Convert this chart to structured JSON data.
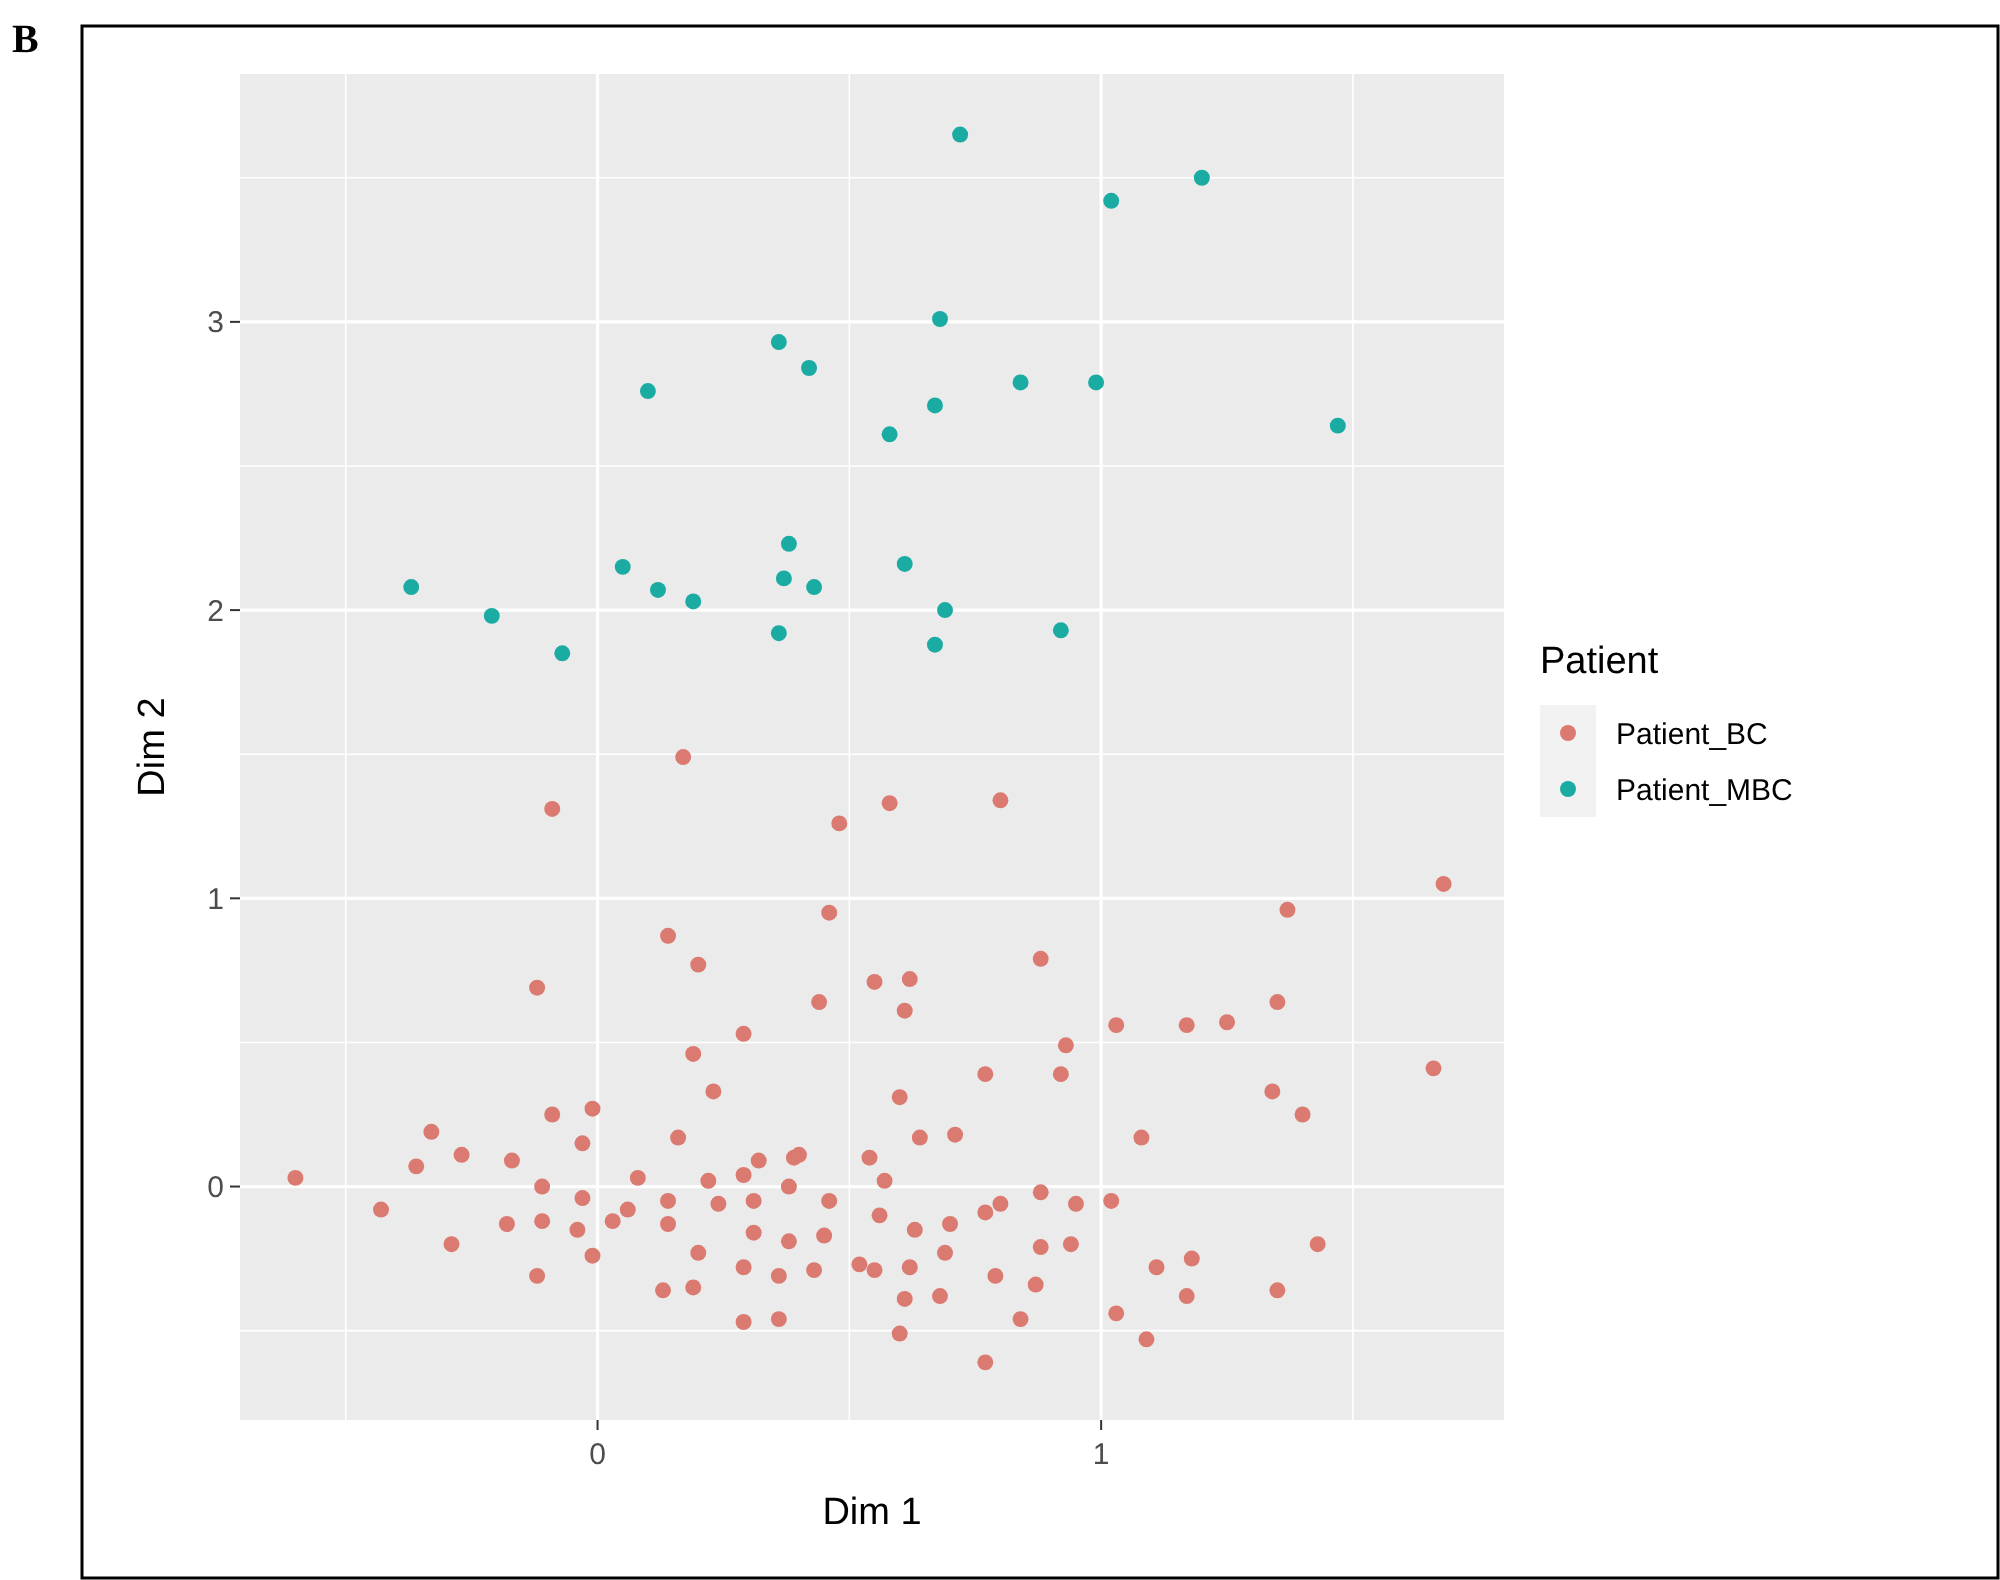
{
  "chart_data": {
    "type": "scatter",
    "xlabel": "Dim 1",
    "ylabel": "Dim 2",
    "legend_title": "Patient",
    "annotations": [
      "B"
    ],
    "xlim": [
      -0.71,
      1.8
    ],
    "ylim": [
      -0.81,
      3.86
    ],
    "xticks": [
      0,
      1
    ],
    "yticks": [
      0,
      1,
      2,
      3
    ],
    "grid": true,
    "legend": "right",
    "marker": "circle",
    "series": [
      {
        "name": "Patient_BC",
        "color": "#db7a70",
        "x": [
          0.17,
          -0.09,
          0.48,
          0.58,
          0.8,
          0.46,
          1.37,
          1.68,
          0.14,
          0.2,
          -0.12,
          0.88,
          0.55,
          0.62,
          0.61,
          0.44,
          1.35,
          0.29,
          1.03,
          1.17,
          1.25,
          0.93,
          0.19,
          0.77,
          0.92,
          1.66,
          0.23,
          0.6,
          1.34,
          1.4,
          -0.09,
          -0.01,
          -0.33,
          0.16,
          0.64,
          0.71,
          1.08,
          -0.03,
          -0.36,
          -0.27,
          -0.17,
          -0.6,
          -0.11,
          0.08,
          0.22,
          0.29,
          0.32,
          0.38,
          0.39,
          0.4,
          0.54,
          0.57,
          -0.43,
          -0.03,
          0.14,
          0.24,
          0.31,
          0.46,
          0.88,
          0.95,
          1.02,
          0.8,
          0.77,
          -0.18,
          -0.11,
          -0.04,
          0.03,
          0.06,
          0.14,
          0.31,
          0.38,
          0.45,
          0.56,
          0.63,
          0.7,
          -0.29,
          -0.01,
          0.2,
          0.69,
          0.88,
          0.94,
          1.43,
          -0.12,
          0.29,
          0.36,
          0.43,
          0.52,
          0.55,
          0.62,
          0.79,
          1.11,
          1.18,
          0.87,
          0.13,
          0.19,
          0.61,
          0.68,
          1.17,
          1.35,
          0.29,
          0.36,
          0.84,
          1.03,
          0.6,
          1.09,
          0.77
        ],
        "values": [
          1.49,
          1.31,
          1.26,
          1.33,
          1.34,
          0.95,
          0.96,
          1.05,
          0.87,
          0.77,
          0.69,
          0.79,
          0.71,
          0.72,
          0.61,
          0.64,
          0.64,
          0.53,
          0.56,
          0.56,
          0.57,
          0.49,
          0.46,
          0.39,
          0.39,
          0.41,
          0.33,
          0.31,
          0.33,
          0.25,
          0.25,
          0.27,
          0.19,
          0.17,
          0.17,
          0.18,
          0.17,
          0.15,
          0.07,
          0.11,
          0.09,
          0.03,
          0.0,
          0.03,
          0.02,
          0.04,
          0.09,
          0.0,
          0.1,
          0.11,
          0.1,
          0.02,
          -0.08,
          -0.04,
          -0.05,
          -0.06,
          -0.05,
          -0.05,
          -0.02,
          -0.06,
          -0.05,
          -0.06,
          -0.09,
          -0.13,
          -0.12,
          -0.15,
          -0.12,
          -0.08,
          -0.13,
          -0.16,
          -0.19,
          -0.17,
          -0.1,
          -0.15,
          -0.13,
          -0.2,
          -0.24,
          -0.23,
          -0.23,
          -0.21,
          -0.2,
          -0.2,
          -0.31,
          -0.28,
          -0.31,
          -0.29,
          -0.27,
          -0.29,
          -0.28,
          -0.31,
          -0.28,
          -0.25,
          -0.34,
          -0.36,
          -0.35,
          -0.39,
          -0.38,
          -0.38,
          -0.36,
          -0.47,
          -0.46,
          -0.46,
          -0.44,
          -0.51,
          -0.53,
          -0.61
        ]
      },
      {
        "name": "Patient_MBC",
        "color": "#1aaba3",
        "x": [
          0.72,
          1.02,
          1.2,
          0.68,
          0.36,
          0.42,
          0.1,
          0.84,
          0.99,
          0.67,
          0.58,
          1.47,
          0.38,
          0.05,
          0.61,
          -0.37,
          0.12,
          0.37,
          0.43,
          0.19,
          -0.21,
          0.69,
          -0.07,
          0.36,
          0.67,
          0.92
        ],
        "values": [
          3.65,
          3.42,
          3.5,
          3.01,
          2.93,
          2.84,
          2.76,
          2.79,
          2.79,
          2.71,
          2.61,
          2.64,
          2.23,
          2.15,
          2.16,
          2.08,
          2.07,
          2.11,
          2.08,
          2.03,
          1.98,
          2.0,
          1.85,
          1.92,
          1.88,
          1.93
        ]
      }
    ]
  }
}
